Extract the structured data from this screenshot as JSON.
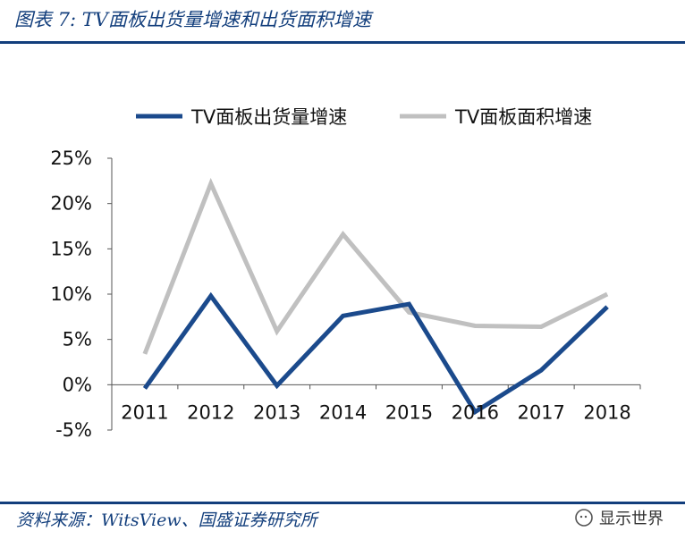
{
  "figure": {
    "title": "图表 7:   TV面板出货量增速和出货面积增速",
    "source": "资料来源：WitsView、国盛证券研究所",
    "watermark": "显示世界"
  },
  "chart_data": {
    "type": "line",
    "title": "TV面板出货量增速和出货面积增速",
    "xlabel": "",
    "ylabel": "",
    "categories": [
      "2011",
      "2012",
      "2013",
      "2014",
      "2015",
      "2016",
      "2017",
      "2018"
    ],
    "ylim": [
      -5,
      25
    ],
    "yticks": [
      25,
      20,
      15,
      10,
      5,
      0,
      -5
    ],
    "ytick_labels": [
      "25%",
      "20%",
      "15%",
      "10%",
      "5%",
      "0%",
      "-5%"
    ],
    "legend_position": "top",
    "series": [
      {
        "name": "TV面板出货量增速",
        "color": "#1b4a8c",
        "values": [
          -0.4,
          9.8,
          -0.1,
          7.6,
          8.9,
          -3.0,
          1.6,
          8.6
        ]
      },
      {
        "name": "TV面板面积增速",
        "color": "#c0c0c0",
        "values": [
          3.4,
          22.2,
          5.9,
          16.6,
          8.0,
          6.5,
          6.4,
          10.0
        ]
      }
    ]
  }
}
